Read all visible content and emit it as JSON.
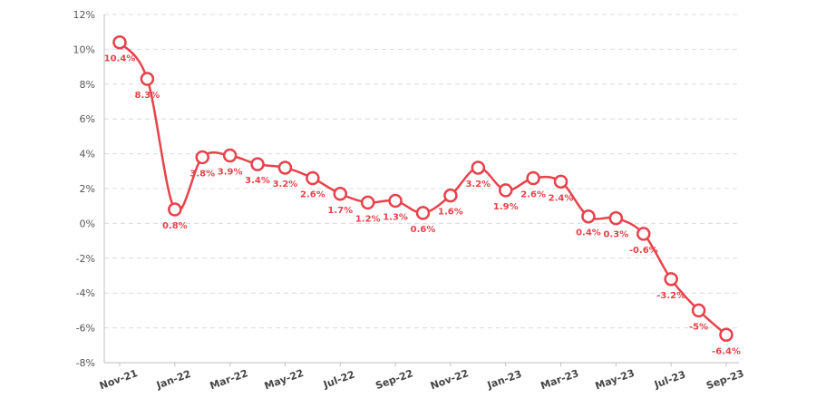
{
  "chart_data": {
    "type": "line",
    "title": "",
    "xlabel": "",
    "ylabel": "",
    "ylim": [
      -8,
      12
    ],
    "yticks": [
      -8,
      -6,
      -4,
      -2,
      0,
      2,
      4,
      6,
      8,
      10,
      12
    ],
    "ytick_labels": [
      "-8%",
      "-6%",
      "-4%",
      "-2%",
      "0%",
      "2%",
      "4%",
      "6%",
      "8%",
      "10%",
      "12%"
    ],
    "grid": true,
    "legend": "none",
    "colors": {
      "series": "#e8424b"
    },
    "x": [
      "Nov-21",
      "Dec-21",
      "Jan-22",
      "Feb-22",
      "Mar-22",
      "Apr-22",
      "May-22",
      "Jun-22",
      "Jul-22",
      "Aug-22",
      "Sep-22",
      "Oct-22",
      "Nov-22",
      "Dec-22",
      "Jan-23",
      "Feb-23",
      "Mar-23",
      "Apr-23",
      "May-23",
      "Jun-23",
      "Jul-23",
      "Aug-23",
      "Sep-23"
    ],
    "xtick_labels": [
      "Nov-21",
      "Jan-22",
      "Mar-22",
      "May-22",
      "Jul-22",
      "Sep-22",
      "Nov-22",
      "Jan-23",
      "Mar-23",
      "May-23",
      "Jul-23",
      "Sep-23"
    ],
    "series": [
      {
        "values": [
          10.4,
          8.3,
          0.8,
          3.8,
          3.9,
          3.4,
          3.2,
          2.6,
          1.7,
          1.2,
          1.3,
          0.6,
          1.6,
          3.2,
          1.9,
          2.6,
          2.4,
          0.4,
          0.3,
          -0.6,
          -3.2,
          -5,
          -6.4
        ],
        "labels": [
          "10.4%",
          "8.3%",
          "0.8%",
          "3.8%",
          "3.9%",
          "3.4%",
          "3.2%",
          "2.6%",
          "1.7%",
          "1.2%",
          "1.3%",
          "0.6%",
          "1.6%",
          "3.2%",
          "1.9%",
          "2.6%",
          "2.4%",
          "0.4%",
          "0.3%",
          "-0.6%",
          "-3.2%",
          "-5%",
          "-6.4%"
        ]
      }
    ]
  }
}
